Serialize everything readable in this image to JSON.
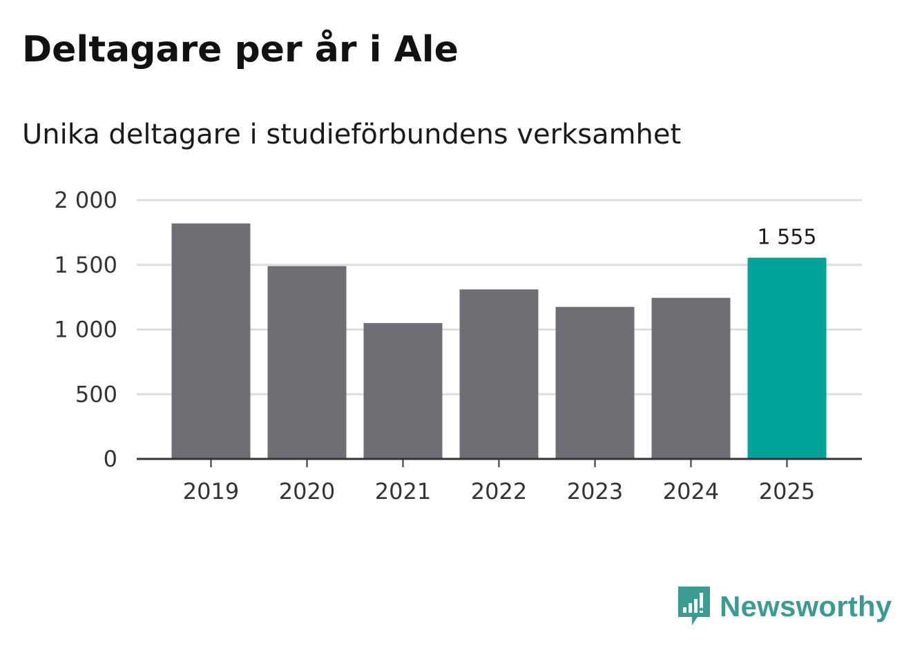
{
  "title": "Deltagare per år i Ale",
  "subtitle": "Unika deltagare i studieförbundens verksamhet",
  "brand": {
    "name": "Newsworthy",
    "color": "#3d9a92"
  },
  "colors": {
    "bar": "#6f6e74",
    "highlight": "#00a39a",
    "grid": "#dddddd",
    "axis": "#333333"
  },
  "chart_data": {
    "type": "bar",
    "categories": [
      "2019",
      "2020",
      "2021",
      "2022",
      "2023",
      "2024",
      "2025"
    ],
    "values": [
      1820,
      1490,
      1050,
      1310,
      1175,
      1245,
      1555
    ],
    "highlight_index": 6,
    "data_labels": [
      {
        "index": 6,
        "text": "1 555"
      }
    ],
    "yticks": [
      {
        "value": 0,
        "label": "0"
      },
      {
        "value": 500,
        "label": "500"
      },
      {
        "value": 1000,
        "label": "1 000"
      },
      {
        "value": 1500,
        "label": "1 500"
      },
      {
        "value": 2000,
        "label": "2 000"
      }
    ],
    "ylim": [
      0,
      2000
    ],
    "xlabel": "",
    "ylabel": "",
    "grid": true,
    "legend": "none"
  }
}
